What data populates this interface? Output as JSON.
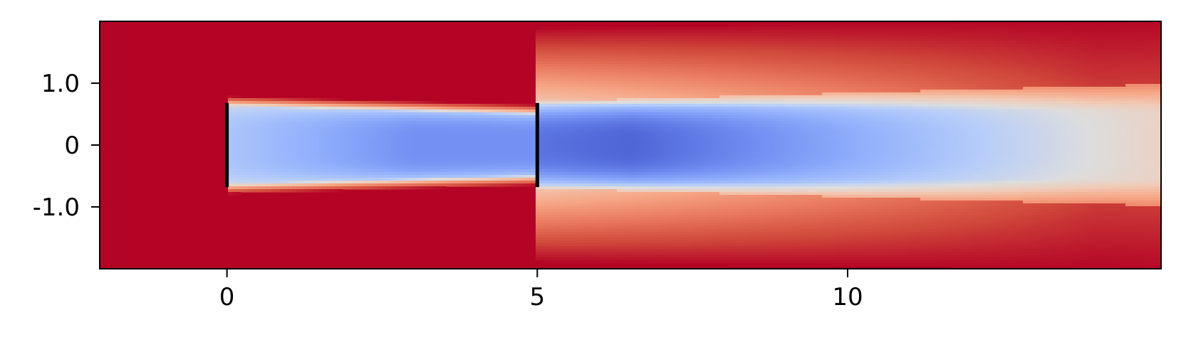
{
  "chart_data": {
    "type": "heatmap",
    "title": "",
    "xlabel": "",
    "ylabel": "",
    "xlim": [
      -2.05,
      15.05
    ],
    "ylim": [
      -2.0,
      2.0
    ],
    "x_ticks": [
      {
        "value": 0,
        "label": "0"
      },
      {
        "value": 5,
        "label": "5"
      },
      {
        "value": 10,
        "label": "10"
      }
    ],
    "y_ticks": [
      {
        "value": 1.0,
        "label": "1.0"
      },
      {
        "value": 0,
        "label": "0"
      },
      {
        "value": -1.0,
        "label": "-1.0"
      }
    ],
    "colormap": "coolwarm",
    "background_color": "#b40426",
    "grid": false,
    "legend": "none",
    "turbines": [
      {
        "x": 0,
        "y_range": [
          -0.68,
          0.68
        ]
      },
      {
        "x": 5,
        "y_range": [
          -0.68,
          0.68
        ]
      }
    ]
  }
}
